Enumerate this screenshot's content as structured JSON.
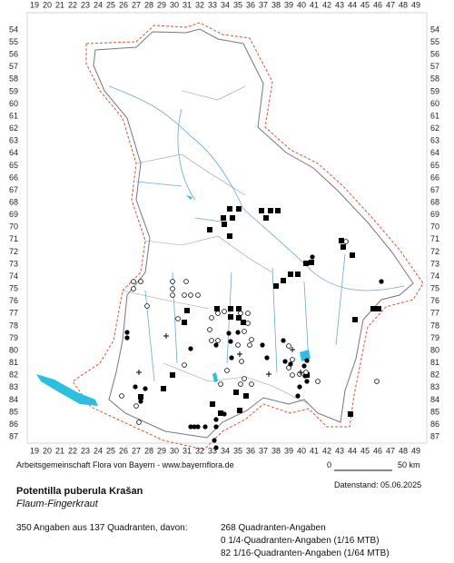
{
  "map": {
    "columns": [
      "19",
      "20",
      "21",
      "22",
      "23",
      "24",
      "25",
      "26",
      "27",
      "28",
      "29",
      "30",
      "31",
      "32",
      "33",
      "34",
      "35",
      "36",
      "37",
      "38",
      "39",
      "40",
      "41",
      "42",
      "43",
      "44",
      "45",
      "46",
      "47",
      "48",
      "49"
    ],
    "rows": [
      "54",
      "55",
      "56",
      "57",
      "58",
      "59",
      "60",
      "61",
      "62",
      "63",
      "64",
      "65",
      "66",
      "67",
      "68",
      "69",
      "70",
      "71",
      "72",
      "73",
      "74",
      "75",
      "76",
      "77",
      "78",
      "79",
      "80",
      "81",
      "82",
      "83",
      "84",
      "85",
      "86",
      "87"
    ],
    "credit": "Arbeitsgemeinschaft Flora von Bayern - www.bayernflora.de",
    "scale_start": "0",
    "scale_end": "50 km",
    "date": "Datenstand: 05.06.2025"
  },
  "species": {
    "name": "Potentilla puberula Krašan",
    "common_name": "Flaum-Fingerkraut"
  },
  "summary": {
    "total": "350 Angaben aus 137 Quadranten, davon:",
    "lines": [
      "268 Quadranten-Angaben",
      "0 1/4-Quadranten-Angaben (1/16 MTB)",
      "82 1/16-Quadranten-Angaben (1/64 MTB)"
    ]
  }
}
